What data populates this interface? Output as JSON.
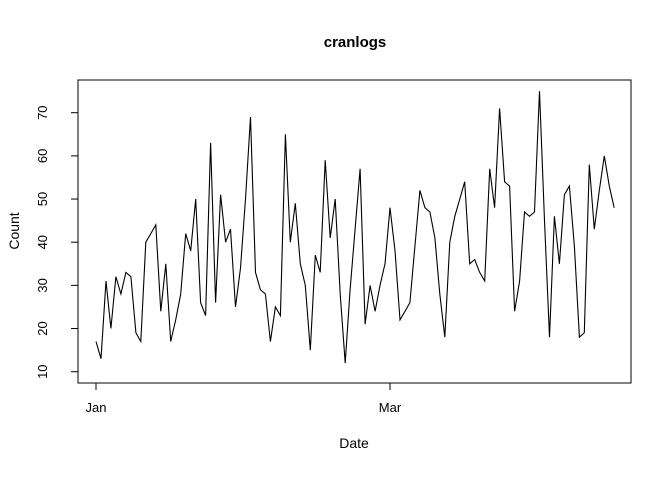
{
  "chart_data": {
    "type": "line",
    "title": "cranlogs",
    "xlabel": "Date",
    "ylabel": "Count",
    "line_color": "#000000",
    "background_color": "#ffffff",
    "grid": "off",
    "legend": "none",
    "ylim": [
      10,
      75
    ],
    "y_ticks": [
      10,
      20,
      30,
      40,
      50,
      60,
      70
    ],
    "x_ticks": [
      {
        "label": "Jan",
        "day_index": 0
      },
      {
        "label": "Mar",
        "day_index": 59
      }
    ],
    "x_unit": "days (daily observations, first point at Jan tick)",
    "values": [
      17,
      13,
      31,
      20,
      32,
      28,
      33,
      32,
      19,
      17,
      40,
      42,
      44,
      24,
      35,
      17,
      22,
      28,
      42,
      38,
      50,
      26,
      23,
      63,
      26,
      51,
      40,
      43,
      25,
      34,
      50,
      69,
      33,
      29,
      28,
      17,
      25,
      23,
      65,
      40,
      49,
      35,
      30,
      15,
      37,
      33,
      59,
      41,
      50,
      28,
      12,
      29,
      43,
      57,
      21,
      30,
      24,
      30,
      35,
      48,
      38,
      22,
      24,
      26,
      39,
      52,
      48,
      47,
      41,
      28,
      18,
      40,
      46,
      50,
      54,
      35,
      36,
      33,
      31,
      57,
      48,
      71,
      54,
      53,
      24,
      31,
      47,
      46,
      47,
      75,
      45,
      18,
      46,
      35,
      51,
      53,
      39,
      18,
      19,
      58,
      43,
      52,
      60,
      53,
      48
    ]
  }
}
